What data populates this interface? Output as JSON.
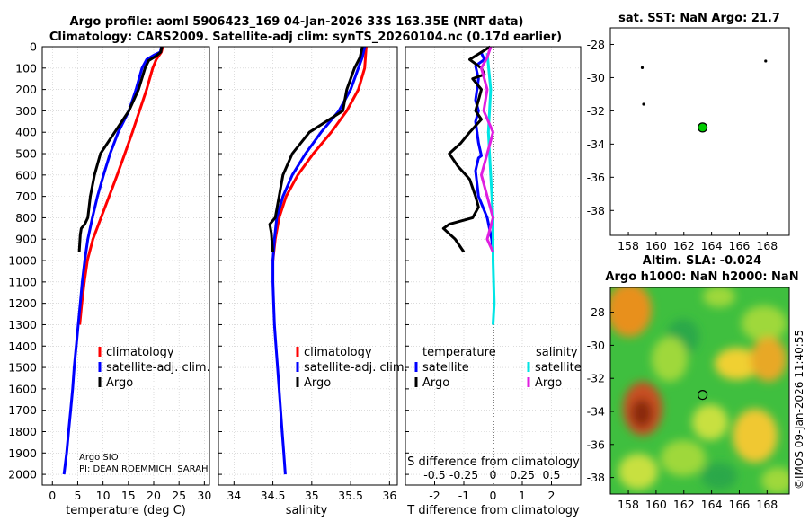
{
  "title": {
    "line1": "Argo profile: aoml 5906423_169 04-Jan-2026 33S 163.35E (NRT data)",
    "line2": "Climatology: CARS2009. Satellite-adj clim: synTS_20260104.nc (0.17d earlier)"
  },
  "colors": {
    "climatology": "#ff0000",
    "satellite": "#0000ff",
    "argo": "#000000",
    "sat_salinity": "#00e5e5",
    "argo_salinity": "#e01ee0"
  },
  "depth_ticks": [
    0,
    100,
    200,
    300,
    400,
    500,
    600,
    700,
    800,
    900,
    1000,
    1100,
    1200,
    1300,
    1400,
    1500,
    1600,
    1700,
    1800,
    1900,
    2000
  ],
  "chart_data": [
    {
      "type": "line",
      "id": "temperature",
      "xlabel": "temperature (deg C)",
      "ylabel": "depth",
      "xlim": [
        -2,
        31
      ],
      "ylim": [
        2050,
        0
      ],
      "xticks": [
        0,
        5,
        10,
        15,
        20,
        25,
        30
      ],
      "legend": [
        "climatology",
        "satellite-adj. clim.",
        "Argo"
      ],
      "credit": [
        "Argo SIO",
        "PI: DEAN ROEMMICH, SARAH"
      ],
      "series": [
        {
          "name": "climatology",
          "color": "#ff0000",
          "points": [
            [
              21.8,
              0
            ],
            [
              21.5,
              25
            ],
            [
              20.5,
              60
            ],
            [
              19.8,
              100
            ],
            [
              18.6,
              200
            ],
            [
              17.2,
              300
            ],
            [
              15.8,
              400
            ],
            [
              14.3,
              500
            ],
            [
              12.8,
              600
            ],
            [
              11.2,
              700
            ],
            [
              9.6,
              800
            ],
            [
              8.0,
              900
            ],
            [
              6.9,
              1000
            ],
            [
              6.3,
              1100
            ],
            [
              5.8,
              1200
            ],
            [
              5.4,
              1300
            ]
          ]
        },
        {
          "name": "satellite-adj. clim.",
          "color": "#0000ff",
          "points": [
            [
              21.5,
              0
            ],
            [
              21.3,
              25
            ],
            [
              20.0,
              40
            ],
            [
              18.6,
              60
            ],
            [
              17.7,
              100
            ],
            [
              16.5,
              200
            ],
            [
              15.1,
              300
            ],
            [
              13.0,
              400
            ],
            [
              11.4,
              500
            ],
            [
              10.1,
              600
            ],
            [
              8.9,
              700
            ],
            [
              7.9,
              800
            ],
            [
              7.0,
              900
            ],
            [
              6.4,
              1000
            ],
            [
              5.9,
              1100
            ],
            [
              5.5,
              1200
            ],
            [
              5.1,
              1300
            ],
            [
              4.7,
              1400
            ],
            [
              4.3,
              1500
            ],
            [
              4.0,
              1600
            ],
            [
              3.6,
              1700
            ],
            [
              3.2,
              1800
            ],
            [
              2.8,
              1900
            ],
            [
              2.3,
              2000
            ]
          ]
        },
        {
          "name": "Argo",
          "color": "#000000",
          "points": [
            [
              21.6,
              0
            ],
            [
              21.4,
              25
            ],
            [
              20.4,
              45
            ],
            [
              19.0,
              65
            ],
            [
              18.3,
              100
            ],
            [
              17.0,
              200
            ],
            [
              15.1,
              300
            ],
            [
              12.3,
              400
            ],
            [
              9.5,
              500
            ],
            [
              8.3,
              600
            ],
            [
              7.5,
              700
            ],
            [
              7.0,
              800
            ],
            [
              6.4,
              830
            ],
            [
              5.7,
              850
            ],
            [
              5.5,
              880
            ],
            [
              5.4,
              920
            ],
            [
              5.3,
              960
            ]
          ]
        }
      ]
    },
    {
      "type": "line",
      "id": "salinity",
      "xlabel": "salinity",
      "ylabel": "depth",
      "xlim": [
        33.8,
        36.1
      ],
      "ylim": [
        2050,
        0
      ],
      "xticks": [
        34,
        34.5,
        35,
        35.5,
        36
      ],
      "legend": [
        "climatology",
        "satellite-adj. clim.",
        "Argo"
      ],
      "series": [
        {
          "name": "climatology",
          "color": "#ff0000",
          "points": [
            [
              35.7,
              0
            ],
            [
              35.68,
              100
            ],
            [
              35.6,
              200
            ],
            [
              35.45,
              300
            ],
            [
              35.25,
              400
            ],
            [
              35.02,
              500
            ],
            [
              34.82,
              600
            ],
            [
              34.67,
              700
            ],
            [
              34.58,
              800
            ],
            [
              34.53,
              900
            ],
            [
              34.5,
              1000
            ]
          ]
        },
        {
          "name": "satellite-adj. clim.",
          "color": "#0000ff",
          "points": [
            [
              35.68,
              0
            ],
            [
              35.65,
              50
            ],
            [
              35.6,
              100
            ],
            [
              35.5,
              200
            ],
            [
              35.35,
              300
            ],
            [
              35.12,
              400
            ],
            [
              34.92,
              500
            ],
            [
              34.75,
              600
            ],
            [
              34.63,
              700
            ],
            [
              34.55,
              800
            ],
            [
              34.52,
              900
            ],
            [
              34.5,
              1000
            ],
            [
              34.5,
              1100
            ],
            [
              34.51,
              1200
            ],
            [
              34.52,
              1300
            ],
            [
              34.54,
              1400
            ],
            [
              34.56,
              1500
            ],
            [
              34.58,
              1600
            ],
            [
              34.6,
              1700
            ],
            [
              34.62,
              1800
            ],
            [
              34.64,
              1900
            ],
            [
              34.66,
              2000
            ]
          ]
        },
        {
          "name": "Argo",
          "color": "#000000",
          "points": [
            [
              35.65,
              0
            ],
            [
              35.62,
              50
            ],
            [
              35.55,
              100
            ],
            [
              35.45,
              200
            ],
            [
              35.4,
              300
            ],
            [
              34.97,
              400
            ],
            [
              34.75,
              500
            ],
            [
              34.63,
              600
            ],
            [
              34.58,
              700
            ],
            [
              34.53,
              800
            ],
            [
              34.46,
              830
            ],
            [
              34.48,
              870
            ],
            [
              34.49,
              920
            ],
            [
              34.5,
              960
            ]
          ]
        }
      ]
    },
    {
      "type": "line",
      "id": "difference",
      "xlabel": "T difference from climatology",
      "x2label": "S difference from climatology",
      "xlim": [
        -3,
        3
      ],
      "ylim": [
        2050,
        0
      ],
      "xticks": [
        -2,
        -1,
        0,
        1,
        2
      ],
      "x2ticks": [
        -0.5,
        -0.25,
        0,
        0.25,
        0.5
      ],
      "legend_headers": [
        "temperature",
        "salinity"
      ],
      "legend": [
        "satellite",
        "Argo",
        "satellite",
        "Argo"
      ],
      "series": [
        {
          "name": "temperature satellite",
          "color": "#0000ff",
          "points": [
            [
              -0.4,
              30
            ],
            [
              -0.3,
              60
            ],
            [
              -0.6,
              90
            ],
            [
              -0.5,
              150
            ],
            [
              -0.6,
              250
            ],
            [
              -0.5,
              300
            ],
            [
              -0.6,
              350
            ],
            [
              -0.5,
              450
            ],
            [
              -0.4,
              510
            ],
            [
              -0.5,
              520
            ],
            [
              -0.6,
              580
            ],
            [
              -0.5,
              700
            ],
            [
              -0.2,
              800
            ],
            [
              -0.05,
              900
            ],
            [
              0.0,
              960
            ]
          ]
        },
        {
          "name": "temperature Argo",
          "color": "#000000",
          "points": [
            [
              -0.1,
              0
            ],
            [
              -0.8,
              60
            ],
            [
              -0.4,
              100
            ],
            [
              -0.3,
              130
            ],
            [
              -0.7,
              150
            ],
            [
              -0.4,
              200
            ],
            [
              -0.5,
              250
            ],
            [
              -0.6,
              300
            ],
            [
              -0.4,
              340
            ],
            [
              -0.8,
              400
            ],
            [
              -1.1,
              450
            ],
            [
              -1.5,
              500
            ],
            [
              -1.2,
              560
            ],
            [
              -0.8,
              620
            ],
            [
              -0.6,
              700
            ],
            [
              -0.5,
              750
            ],
            [
              -0.7,
              800
            ],
            [
              -1.5,
              830
            ],
            [
              -1.7,
              850
            ],
            [
              -1.3,
              900
            ],
            [
              -1.0,
              960
            ]
          ]
        },
        {
          "name": "salinity satellite",
          "color": "#00e5e5",
          "points": [
            [
              -0.05,
              30
            ],
            [
              -0.02,
              200
            ],
            [
              -0.04,
              400
            ],
            [
              -0.02,
              600
            ],
            [
              0.0,
              800
            ],
            [
              0.0,
              1000
            ],
            [
              0.01,
              1200
            ],
            [
              0.0,
              1300
            ]
          ]
        },
        {
          "name": "salinity Argo",
          "color": "#e01ee0",
          "points": [
            [
              -0.02,
              0
            ],
            [
              -0.05,
              50
            ],
            [
              -0.1,
              100
            ],
            [
              -0.05,
              200
            ],
            [
              -0.08,
              300
            ],
            [
              0.0,
              400
            ],
            [
              -0.05,
              500
            ],
            [
              -0.1,
              600
            ],
            [
              -0.05,
              700
            ],
            [
              0.0,
              800
            ],
            [
              -0.05,
              900
            ],
            [
              0.0,
              960
            ]
          ]
        }
      ]
    },
    {
      "type": "scatter",
      "id": "sst-map",
      "title": "sat. SST: NaN Argo: 21.7",
      "xlim": [
        156.7,
        169.6
      ],
      "ylim": [
        -39.5,
        -27
      ],
      "xticks": [
        158,
        160,
        162,
        164,
        166,
        168
      ],
      "yticks": [
        -28,
        -30,
        -32,
        -34,
        -36,
        -38
      ],
      "series": [
        {
          "name": "land",
          "color": "#000000",
          "points": [
            [
              159.0,
              -29.4
            ],
            [
              159.1,
              -31.6
            ],
            [
              167.9,
              -29.0
            ]
          ]
        },
        {
          "name": "Argo position",
          "color": "#00cc00",
          "points": [
            [
              163.35,
              -33.0
            ]
          ]
        }
      ]
    },
    {
      "type": "heatmap",
      "id": "sla-map",
      "title": "Altim. SLA: -0.024",
      "subtitle": "Argo h1000: NaN h2000: NaN",
      "xlim": [
        156.7,
        169.6
      ],
      "ylim": [
        -39,
        -26.5
      ],
      "xticks": [
        158,
        160,
        162,
        164,
        166,
        168
      ],
      "yticks": [
        -28,
        -30,
        -32,
        -34,
        -36,
        -38
      ],
      "series": [
        {
          "name": "Argo position",
          "points": [
            [
              163.35,
              -33.0
            ]
          ]
        }
      ]
    }
  ],
  "watermark": "©IMOS 09-Jan-2026 11:40:55"
}
